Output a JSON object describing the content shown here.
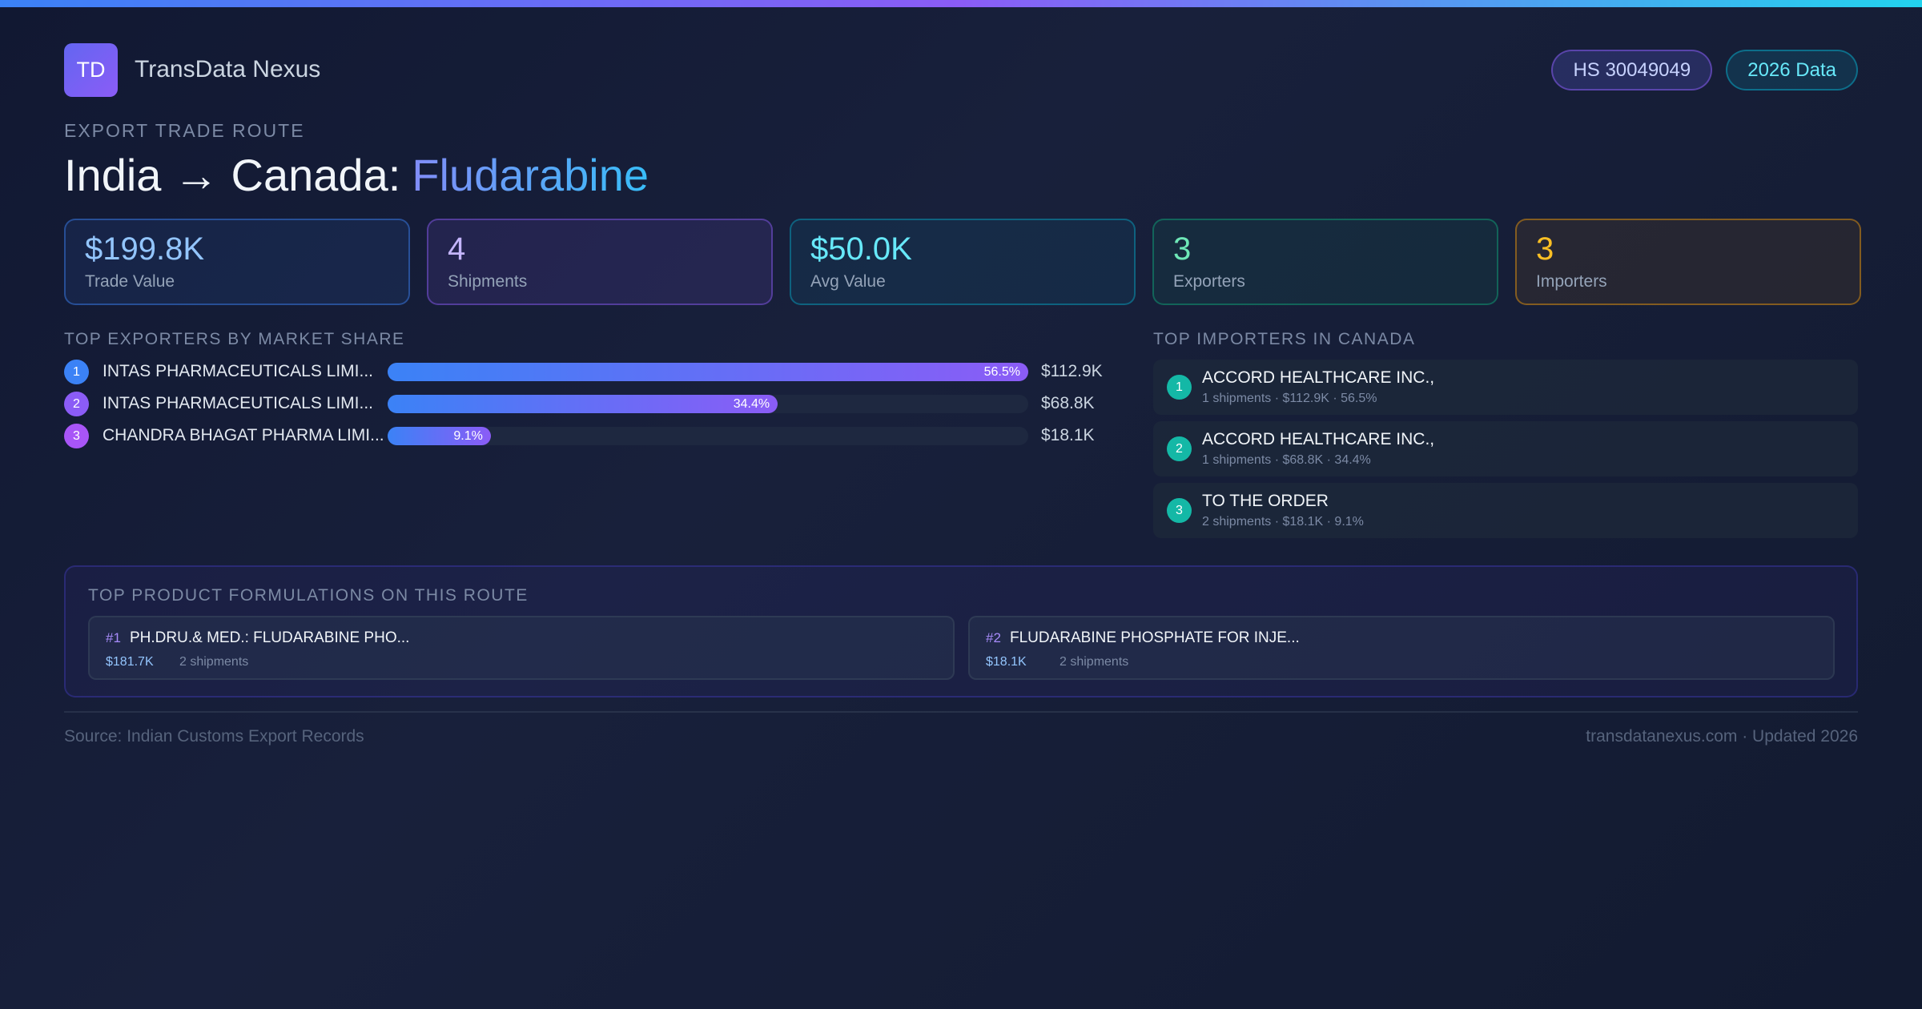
{
  "header": {
    "logo": "TD",
    "brand": "TransData Nexus",
    "badges": [
      "HS 30049049",
      "2026 Data"
    ]
  },
  "route": {
    "label": "EXPORT TRADE ROUTE",
    "title": "India → Canada:",
    "product": "Fludarabine"
  },
  "stats": [
    {
      "value": "$199.8K",
      "label": "Trade Value"
    },
    {
      "value": "4",
      "label": "Shipments"
    },
    {
      "value": "$50.0K",
      "label": "Avg Value"
    },
    {
      "value": "3",
      "label": "Exporters"
    },
    {
      "value": "3",
      "label": "Importers"
    }
  ],
  "exporters": {
    "heading": "TOP EXPORTERS BY MARKET SHARE",
    "ranks": [
      "1",
      "2",
      "3"
    ],
    "names": [
      "INTAS PHARMACEUTICALS LIMI...",
      "INTAS PHARMACEUTICALS LIMI...",
      "CHANDRA BHAGAT PHARMA LIMI..."
    ],
    "shares": [
      56.5,
      34.4,
      9.1
    ],
    "share_labels": [
      "56.5%",
      "34.4%",
      "9.1%"
    ],
    "values": [
      "$112.9K",
      "$68.8K",
      "$18.1K"
    ]
  },
  "importers": {
    "heading": "TOP IMPORTERS IN CANADA",
    "items": [
      {
        "rank": "1",
        "name": "ACCORD HEALTHCARE INC.,",
        "detail": "1 shipments · $112.9K · 56.5%"
      },
      {
        "rank": "2",
        "name": "ACCORD HEALTHCARE INC.,",
        "detail": "1 shipments · $68.8K · 34.4%"
      },
      {
        "rank": "3",
        "name": "TO THE ORDER",
        "detail": "2 shipments · $18.1K · 9.1%"
      }
    ]
  },
  "formulations": {
    "heading": "TOP PRODUCT FORMULATIONS ON THIS ROUTE",
    "items": [
      {
        "rank": "#1",
        "name": "PH.DRU.& MED.: FLUDARABINE PHO...",
        "value": "$181.7K",
        "shipments": "2 shipments"
      },
      {
        "rank": "#2",
        "name": "FLUDARABINE PHOSPHATE FOR INJE...",
        "value": "$18.1K",
        "shipments": "2 shipments"
      }
    ]
  },
  "footer": {
    "source": "Source: Indian Customs Export Records",
    "site": "transdatanexus.com · Updated 2026"
  }
}
